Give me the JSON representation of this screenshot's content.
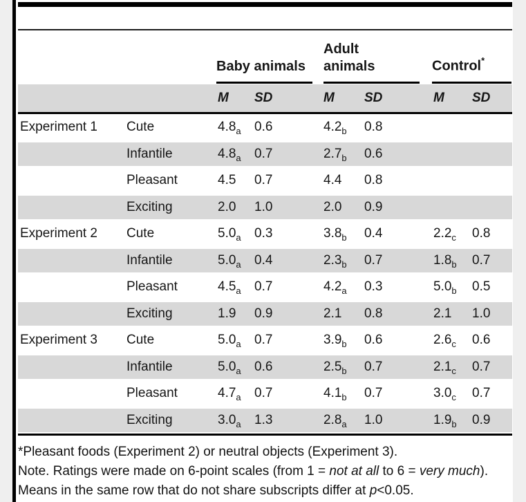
{
  "colors": {
    "page_margin": "#efefef",
    "panel": "#ffffff",
    "stripe": "#d8d8d8",
    "rule": "#000000"
  },
  "table": {
    "groups": [
      {
        "label": "Baby animals",
        "sup": ""
      },
      {
        "label": "Adult animals",
        "sup": ""
      },
      {
        "label": "Control",
        "sup": "*"
      }
    ],
    "col_headers": {
      "m": "M",
      "sd": "SD"
    },
    "rows": [
      {
        "exp": "Experiment 1",
        "cat": "Cute",
        "baby": {
          "m": "4.8",
          "sub": "a",
          "sd": "0.6"
        },
        "adult": {
          "m": "4.2",
          "sub": "b",
          "sd": "0.8"
        },
        "control": {
          "m": "",
          "sub": "",
          "sd": ""
        }
      },
      {
        "exp": "",
        "cat": "Infantile",
        "baby": {
          "m": "4.8",
          "sub": "a",
          "sd": "0.7"
        },
        "adult": {
          "m": "2.7",
          "sub": "b",
          "sd": "0.6"
        },
        "control": {
          "m": "",
          "sub": "",
          "sd": ""
        }
      },
      {
        "exp": "",
        "cat": "Pleasant",
        "baby": {
          "m": "4.5",
          "sub": "",
          "sd": "0.7"
        },
        "adult": {
          "m": "4.4",
          "sub": "",
          "sd": "0.8"
        },
        "control": {
          "m": "",
          "sub": "",
          "sd": ""
        }
      },
      {
        "exp": "",
        "cat": "Exciting",
        "baby": {
          "m": "2.0",
          "sub": "",
          "sd": "1.0"
        },
        "adult": {
          "m": "2.0",
          "sub": "",
          "sd": "0.9"
        },
        "control": {
          "m": "",
          "sub": "",
          "sd": ""
        }
      },
      {
        "exp": "Experiment 2",
        "cat": "Cute",
        "baby": {
          "m": "5.0",
          "sub": "a",
          "sd": "0.3"
        },
        "adult": {
          "m": "3.8",
          "sub": "b",
          "sd": "0.4"
        },
        "control": {
          "m": "2.2",
          "sub": "c",
          "sd": "0.8"
        }
      },
      {
        "exp": "",
        "cat": "Infantile",
        "baby": {
          "m": "5.0",
          "sub": "a",
          "sd": "0.4"
        },
        "adult": {
          "m": "2.3",
          "sub": "b",
          "sd": "0.7"
        },
        "control": {
          "m": "1.8",
          "sub": "b",
          "sd": "0.7"
        }
      },
      {
        "exp": "",
        "cat": "Pleasant",
        "baby": {
          "m": "4.5",
          "sub": "a",
          "sd": "0.7"
        },
        "adult": {
          "m": "4.2",
          "sub": "a",
          "sd": "0.3"
        },
        "control": {
          "m": "5.0",
          "sub": "b",
          "sd": "0.5"
        }
      },
      {
        "exp": "",
        "cat": "Exciting",
        "baby": {
          "m": "1.9",
          "sub": "",
          "sd": "0.9"
        },
        "adult": {
          "m": "2.1",
          "sub": "",
          "sd": "0.8"
        },
        "control": {
          "m": "2.1",
          "sub": "",
          "sd": "1.0"
        }
      },
      {
        "exp": "Experiment 3",
        "cat": "Cute",
        "baby": {
          "m": "5.0",
          "sub": "a",
          "sd": "0.7"
        },
        "adult": {
          "m": "3.9",
          "sub": "b",
          "sd": "0.6"
        },
        "control": {
          "m": "2.6",
          "sub": "c",
          "sd": "0.6"
        }
      },
      {
        "exp": "",
        "cat": "Infantile",
        "baby": {
          "m": "5.0",
          "sub": "a",
          "sd": "0.6"
        },
        "adult": {
          "m": "2.5",
          "sub": "b",
          "sd": "0.7"
        },
        "control": {
          "m": "2.1",
          "sub": "c",
          "sd": "0.7"
        }
      },
      {
        "exp": "",
        "cat": "Pleasant",
        "baby": {
          "m": "4.7",
          "sub": "a",
          "sd": "0.7"
        },
        "adult": {
          "m": "4.1",
          "sub": "b",
          "sd": "0.7"
        },
        "control": {
          "m": "3.0",
          "sub": "c",
          "sd": "0.7"
        }
      },
      {
        "exp": "",
        "cat": "Exciting",
        "baby": {
          "m": "3.0",
          "sub": "a",
          "sd": "1.3"
        },
        "adult": {
          "m": "2.8",
          "sub": "a",
          "sd": "1.0"
        },
        "control": {
          "m": "1.9",
          "sub": "b",
          "sd": "0.9"
        }
      }
    ]
  },
  "footnotes": {
    "asterisk": "*Pleasant foods (Experiment 2) or neutral objects (Experiment 3).",
    "note": {
      "p1": "Note. Ratings were made on 6-point scales (from 1 = ",
      "i1": "not at all",
      "p2": " to 6 = ",
      "i2": "very much",
      "p3": ")."
    },
    "sig": {
      "p1": "Means in the same row that do not share subscripts differ at ",
      "i1": "p",
      "p2": "<0.05."
    }
  }
}
